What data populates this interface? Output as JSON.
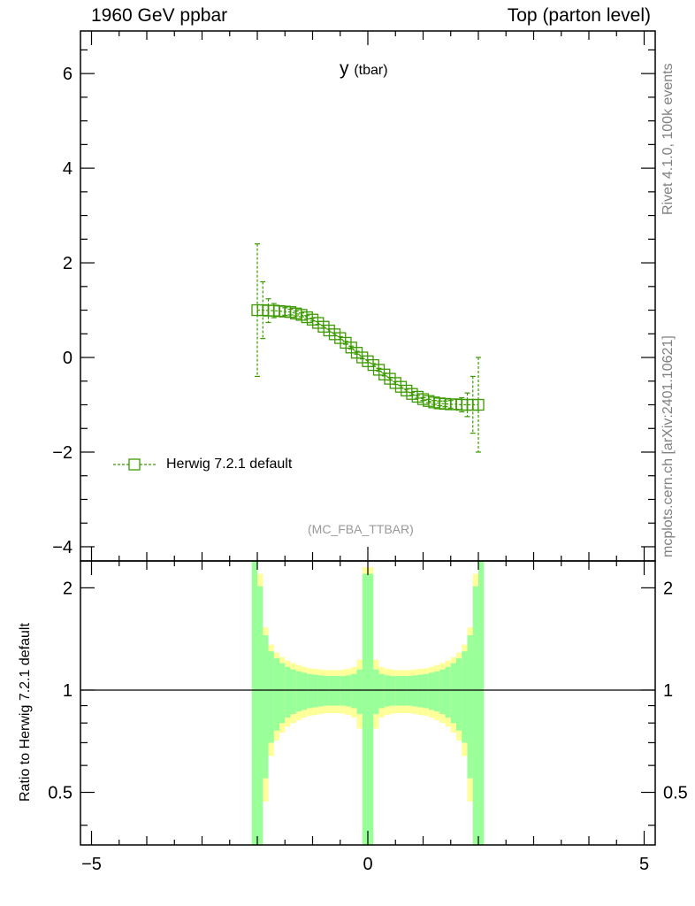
{
  "header": {
    "left": "1960 GeV ppbar",
    "right": "Top (parton level)"
  },
  "side": {
    "rivet": "Rivet 4.1.0,  100k events",
    "mcplots": "mcplots.cern.ch [arXiv:2401.10621]"
  },
  "plot": {
    "title": "y",
    "title_sub": "(tbar)",
    "analysis": "(MC_FBA_TTBAR)",
    "legend": "Herwig 7.2.1 default",
    "ratio_ylabel": "Ratio to Herwig 7.2.1 default"
  },
  "colors": {
    "series": "#3c9a00",
    "band_inner": "#99ff99",
    "band_outer": "#ffff99"
  },
  "chart_data": [
    {
      "type": "scatter",
      "panel": "main",
      "title": "y (tbar)",
      "xlim": [
        -5.2,
        5.2
      ],
      "ylim": [
        -4.3,
        6.9
      ],
      "yticks": [
        -4,
        -2,
        0,
        2,
        4,
        6
      ],
      "ytick_labels": [
        "−4",
        "−2",
        "0",
        "2",
        "4",
        "6"
      ],
      "series": [
        {
          "name": "Herwig 7.2.1 default",
          "x": [
            -2.0,
            -1.9,
            -1.8,
            -1.7,
            -1.6,
            -1.5,
            -1.4,
            -1.3,
            -1.2,
            -1.1,
            -1.0,
            -0.9,
            -0.8,
            -0.7,
            -0.6,
            -0.5,
            -0.4,
            -0.3,
            -0.2,
            -0.1,
            0.0,
            0.1,
            0.2,
            0.3,
            0.4,
            0.5,
            0.6,
            0.7,
            0.8,
            0.9,
            1.0,
            1.1,
            1.2,
            1.3,
            1.4,
            1.5,
            1.6,
            1.7,
            1.8,
            1.9,
            2.0
          ],
          "y": [
            1.0,
            1.0,
            0.99,
            0.99,
            0.98,
            0.97,
            0.96,
            0.93,
            0.9,
            0.85,
            0.8,
            0.73,
            0.65,
            0.57,
            0.49,
            0.41,
            0.31,
            0.21,
            0.1,
            0.0,
            -0.08,
            -0.16,
            -0.26,
            -0.36,
            -0.45,
            -0.54,
            -0.62,
            -0.7,
            -0.77,
            -0.83,
            -0.88,
            -0.92,
            -0.95,
            -0.97,
            -0.98,
            -0.99,
            -0.99,
            -1.0,
            -1.0,
            -1.0,
            -1.0
          ],
          "yerr": [
            1.4,
            0.6,
            0.25,
            0.15,
            0.11,
            0.08,
            0.06,
            0.05,
            0.04,
            0.035,
            0.03,
            0.03,
            0.03,
            0.03,
            0.03,
            0.03,
            0.03,
            0.03,
            0.03,
            0.03,
            0.03,
            0.03,
            0.03,
            0.03,
            0.03,
            0.03,
            0.03,
            0.03,
            0.03,
            0.03,
            0.03,
            0.035,
            0.04,
            0.05,
            0.06,
            0.08,
            0.11,
            0.15,
            0.25,
            0.6,
            1.0
          ]
        }
      ]
    },
    {
      "type": "area",
      "panel": "ratio",
      "ylabel": "Ratio to Herwig 7.2.1 default",
      "xlim": [
        -5.2,
        5.2
      ],
      "ylim": [
        0.35,
        2.4
      ],
      "yscale": "log",
      "yticks": [
        0.5,
        1,
        2
      ],
      "ytick_labels": [
        "0.5",
        "1",
        "2"
      ],
      "xticks": [
        -5,
        0,
        5
      ],
      "xtick_labels": [
        "−5",
        "0",
        "5"
      ],
      "reference_line": 1,
      "bins_edges": [
        -2.1,
        2.1
      ],
      "bin_width": 0.1,
      "band_inner_rel": [
        1.4,
        1.02,
        0.45,
        0.3,
        0.24,
        0.2,
        0.17,
        0.15,
        0.135,
        0.125,
        0.115,
        0.11,
        0.105,
        0.1,
        0.1,
        0.1,
        0.1,
        0.105,
        0.115,
        0.15,
        1.2,
        1.2,
        0.15,
        0.115,
        0.105,
        0.1,
        0.1,
        0.1,
        0.1,
        0.105,
        0.11,
        0.115,
        0.125,
        0.135,
        0.15,
        0.17,
        0.2,
        0.24,
        0.3,
        0.45,
        1.02,
        1.4
      ],
      "band_outer_rel": [
        1.45,
        1.2,
        0.53,
        0.36,
        0.29,
        0.25,
        0.22,
        0.2,
        0.185,
        0.17,
        0.16,
        0.155,
        0.15,
        0.145,
        0.145,
        0.145,
        0.148,
        0.155,
        0.17,
        0.23,
        1.3,
        1.3,
        0.23,
        0.17,
        0.155,
        0.148,
        0.145,
        0.145,
        0.145,
        0.15,
        0.155,
        0.16,
        0.17,
        0.185,
        0.2,
        0.22,
        0.25,
        0.29,
        0.36,
        0.53,
        1.2,
        1.45
      ]
    }
  ]
}
